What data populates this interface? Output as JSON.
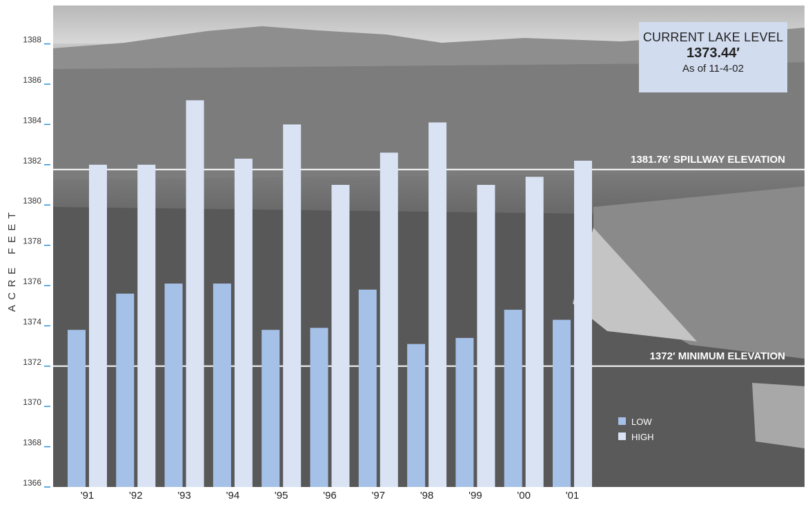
{
  "colors": {
    "low": "#a6c1e8",
    "high": "#d9e3f4",
    "reference_line": "#ffffff",
    "info_box": "#d2dcef",
    "axis_tick": "#2a8fd8"
  },
  "info_box": {
    "title": "CURRENT LAKE LEVEL",
    "value": "1373.44′",
    "date": "As of 11-4-02"
  },
  "chart_data": {
    "type": "bar",
    "title": "",
    "xlabel": "",
    "ylabel": "ACRE FEET",
    "ylim": [
      1366,
      1389.5
    ],
    "yticks": [
      1366,
      1368,
      1370,
      1372,
      1374,
      1376,
      1378,
      1380,
      1382,
      1384,
      1386,
      1388
    ],
    "categories": [
      "'91",
      "'92",
      "'93",
      "'94",
      "'95",
      "'96",
      "'97",
      "'98",
      "'99",
      "'00",
      "'01"
    ],
    "series": [
      {
        "name": "LOW",
        "values": [
          1373.8,
          1375.6,
          1376.1,
          1376.1,
          1373.8,
          1373.9,
          1375.8,
          1373.1,
          1373.4,
          1374.8,
          1374.3
        ]
      },
      {
        "name": "HIGH",
        "values": [
          1382.0,
          1382.0,
          1385.2,
          1382.3,
          1384.0,
          1381.0,
          1382.6,
          1384.1,
          1381.0,
          1381.4,
          1382.2
        ]
      }
    ],
    "reference_lines": [
      {
        "value": 1381.76,
        "label": "1381.76′ SPILLWAY ELEVATION"
      },
      {
        "value": 1372,
        "label": "1372′ MINIMUM ELEVATION"
      }
    ],
    "legend": {
      "position": "bottom-right",
      "entries": [
        "LOW",
        "HIGH"
      ]
    },
    "grid": false
  }
}
